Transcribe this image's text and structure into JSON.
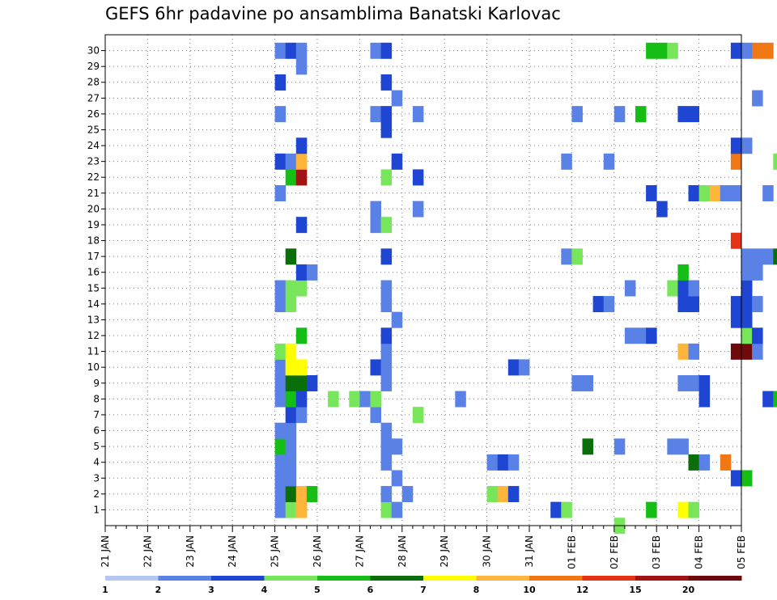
{
  "chart_data": {
    "type": "heatmap",
    "title": "GEFS 6hr padavine po ansamblima Banatski Karlovac",
    "xlabel": "",
    "ylabel": "",
    "x_ticks": [
      "21 JAN",
      "22 JAN",
      "23 JAN",
      "24 JAN",
      "25 JAN",
      "26 JAN",
      "27 JAN",
      "28 JAN",
      "29 JAN",
      "30 JAN",
      "31 JAN",
      "01 FEB",
      "02 FEB",
      "03 FEB",
      "04 FEB",
      "05 FEB"
    ],
    "y_ticks": [
      1,
      2,
      3,
      4,
      5,
      6,
      7,
      8,
      9,
      10,
      11,
      12,
      13,
      14,
      15,
      16,
      17,
      18,
      19,
      20,
      21,
      22,
      23,
      24,
      25,
      26,
      27,
      28,
      29,
      30
    ],
    "time_step": "6hr",
    "grid": true,
    "colorbar": {
      "labels": [
        "1",
        "2",
        "3",
        "4",
        "5",
        "6",
        "7",
        "8",
        "10",
        "12",
        "15",
        "20"
      ],
      "colors": [
        "#b4c8f0",
        "#5a82e6",
        "#1e46d2",
        "#78e65a",
        "#14be14",
        "#0a6e0a",
        "#ffff00",
        "#ffb43c",
        "#f07814",
        "#e63214",
        "#a01414",
        "#6e0a0a"
      ]
    },
    "cells": [
      [
        16,
        1,
        1
      ],
      [
        16,
        2,
        1
      ],
      [
        16,
        3,
        1
      ],
      [
        16,
        4,
        1
      ],
      [
        16,
        5,
        4
      ],
      [
        16,
        6,
        1
      ],
      [
        16,
        8,
        1
      ],
      [
        16,
        9,
        1
      ],
      [
        16,
        10,
        1
      ],
      [
        16,
        11,
        3
      ],
      [
        16,
        14,
        1
      ],
      [
        16,
        15,
        1
      ],
      [
        16,
        21,
        1
      ],
      [
        16,
        23,
        2
      ],
      [
        16,
        26,
        1
      ],
      [
        16,
        28,
        2
      ],
      [
        16,
        30,
        1
      ],
      [
        17,
        1,
        3
      ],
      [
        17,
        2,
        5
      ],
      [
        17,
        3,
        1
      ],
      [
        17,
        4,
        1
      ],
      [
        17,
        5,
        1
      ],
      [
        17,
        6,
        1
      ],
      [
        17,
        7,
        2
      ],
      [
        17,
        8,
        4
      ],
      [
        17,
        9,
        5
      ],
      [
        17,
        10,
        6
      ],
      [
        17,
        11,
        6
      ],
      [
        17,
        14,
        3
      ],
      [
        17,
        15,
        3
      ],
      [
        17,
        17,
        5
      ],
      [
        17,
        22,
        4
      ],
      [
        17,
        23,
        1
      ],
      [
        17,
        30,
        2
      ],
      [
        18,
        1,
        7
      ],
      [
        18,
        2,
        7
      ],
      [
        18,
        7,
        1
      ],
      [
        18,
        8,
        2
      ],
      [
        18,
        9,
        5
      ],
      [
        18,
        10,
        6
      ],
      [
        18,
        12,
        4
      ],
      [
        18,
        15,
        3
      ],
      [
        18,
        16,
        2
      ],
      [
        18,
        19,
        2
      ],
      [
        18,
        22,
        10
      ],
      [
        18,
        23,
        7
      ],
      [
        18,
        24,
        2
      ],
      [
        18,
        29,
        1
      ],
      [
        18,
        30,
        1
      ],
      [
        19,
        2,
        4
      ],
      [
        19,
        9,
        2
      ],
      [
        19,
        16,
        1
      ],
      [
        21,
        8,
        3
      ],
      [
        23,
        8,
        3
      ],
      [
        24,
        8,
        1
      ],
      [
        25,
        7,
        1
      ],
      [
        25,
        8,
        3
      ],
      [
        25,
        10,
        2
      ],
      [
        25,
        19,
        1
      ],
      [
        25,
        20,
        1
      ],
      [
        25,
        26,
        1
      ],
      [
        25,
        30,
        1
      ],
      [
        26,
        1,
        3
      ],
      [
        26,
        2,
        1
      ],
      [
        26,
        4,
        1
      ],
      [
        26,
        5,
        1
      ],
      [
        26,
        6,
        1
      ],
      [
        26,
        9,
        1
      ],
      [
        26,
        10,
        1
      ],
      [
        26,
        11,
        1
      ],
      [
        26,
        12,
        2
      ],
      [
        26,
        14,
        1
      ],
      [
        26,
        15,
        1
      ],
      [
        26,
        17,
        2
      ],
      [
        26,
        19,
        3
      ],
      [
        26,
        22,
        3
      ],
      [
        26,
        25,
        2
      ],
      [
        26,
        26,
        2
      ],
      [
        26,
        28,
        2
      ],
      [
        26,
        30,
        2
      ],
      [
        27,
        1,
        1
      ],
      [
        27,
        3,
        1
      ],
      [
        27,
        5,
        1
      ],
      [
        27,
        13,
        1
      ],
      [
        27,
        23,
        2
      ],
      [
        27,
        27,
        1
      ],
      [
        28,
        2,
        1
      ],
      [
        29,
        7,
        3
      ],
      [
        29,
        20,
        1
      ],
      [
        29,
        22,
        2
      ],
      [
        29,
        26,
        1
      ],
      [
        33,
        8,
        1
      ],
      [
        36,
        2,
        3
      ],
      [
        36,
        4,
        1
      ],
      [
        37,
        2,
        7
      ],
      [
        37,
        4,
        2
      ],
      [
        38,
        2,
        2
      ],
      [
        38,
        4,
        1
      ],
      [
        38,
        10,
        2
      ],
      [
        39,
        10,
        1
      ],
      [
        42,
        1,
        2
      ],
      [
        43,
        1,
        3
      ],
      [
        43,
        17,
        1
      ],
      [
        43,
        23,
        1
      ],
      [
        44,
        9,
        1
      ],
      [
        44,
        17,
        3
      ],
      [
        44,
        26,
        1
      ],
      [
        45,
        5,
        5
      ],
      [
        45,
        9,
        1
      ],
      [
        46,
        14,
        2
      ],
      [
        47,
        14,
        1
      ],
      [
        47,
        23,
        1
      ],
      [
        48,
        0,
        3
      ],
      [
        48,
        5,
        1
      ],
      [
        48,
        26,
        1
      ],
      [
        49,
        12,
        1
      ],
      [
        49,
        15,
        1
      ],
      [
        50,
        12,
        1
      ],
      [
        50,
        26,
        4
      ],
      [
        51,
        1,
        4
      ],
      [
        51,
        12,
        2
      ],
      [
        51,
        21,
        2
      ],
      [
        51,
        30,
        4
      ],
      [
        52,
        20,
        2
      ],
      [
        52,
        30,
        4
      ],
      [
        53,
        5,
        1
      ],
      [
        53,
        15,
        3
      ],
      [
        53,
        30,
        3
      ],
      [
        54,
        1,
        6
      ],
      [
        54,
        5,
        1
      ],
      [
        54,
        9,
        1
      ],
      [
        54,
        11,
        7
      ],
      [
        54,
        14,
        2
      ],
      [
        54,
        15,
        2
      ],
      [
        54,
        16,
        4
      ],
      [
        54,
        26,
        2
      ],
      [
        55,
        1,
        3
      ],
      [
        55,
        4,
        5
      ],
      [
        55,
        9,
        1
      ],
      [
        55,
        11,
        1
      ],
      [
        55,
        14,
        2
      ],
      [
        55,
        15,
        1
      ],
      [
        55,
        21,
        2
      ],
      [
        55,
        26,
        2
      ],
      [
        56,
        4,
        1
      ],
      [
        56,
        8,
        2
      ],
      [
        56,
        9,
        2
      ],
      [
        56,
        21,
        3
      ],
      [
        57,
        21,
        7
      ],
      [
        58,
        4,
        8
      ],
      [
        58,
        21,
        1
      ],
      [
        59,
        3,
        2
      ],
      [
        59,
        11,
        11
      ],
      [
        59,
        13,
        2
      ],
      [
        59,
        14,
        2
      ],
      [
        59,
        18,
        9
      ],
      [
        59,
        21,
        1
      ],
      [
        59,
        23,
        8
      ],
      [
        59,
        24,
        2
      ],
      [
        59,
        30,
        2
      ],
      [
        60,
        3,
        4
      ],
      [
        60,
        11,
        11
      ],
      [
        60,
        12,
        3
      ],
      [
        60,
        13,
        2
      ],
      [
        60,
        14,
        2
      ],
      [
        60,
        15,
        2
      ],
      [
        60,
        16,
        1
      ],
      [
        60,
        17,
        1
      ],
      [
        60,
        24,
        1
      ],
      [
        60,
        30,
        1
      ],
      [
        61,
        11,
        1
      ],
      [
        61,
        12,
        2
      ],
      [
        61,
        14,
        1
      ],
      [
        61,
        16,
        1
      ],
      [
        61,
        17,
        1
      ],
      [
        61,
        27,
        1
      ],
      [
        61,
        30,
        8
      ],
      [
        62,
        8,
        2
      ],
      [
        62,
        17,
        1
      ],
      [
        62,
        21,
        1
      ],
      [
        62,
        30,
        8
      ],
      [
        63,
        8,
        4
      ],
      [
        63,
        17,
        5
      ],
      [
        63,
        23,
        3
      ]
    ]
  }
}
